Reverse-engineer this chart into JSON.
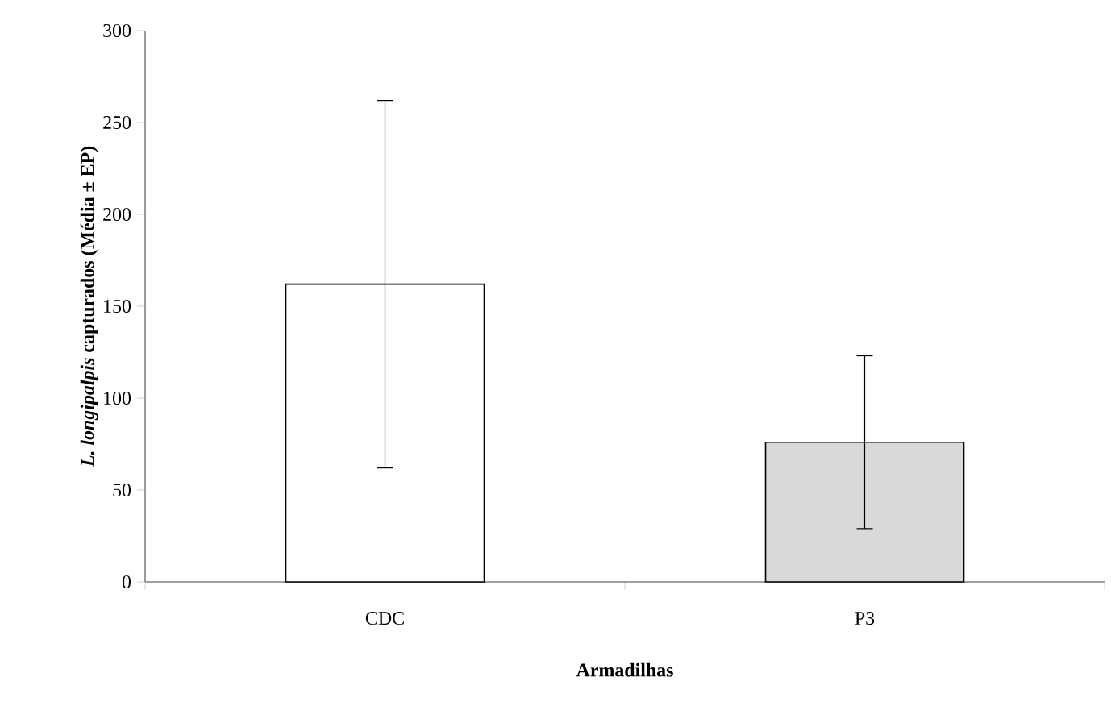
{
  "chart_data": {
    "type": "bar",
    "xlabel": "Armadilhas",
    "ylabel": "*L. longipalpis* capturados (Média ± EP)",
    "categories": [
      "CDC",
      "P3"
    ],
    "values": [
      162,
      76
    ],
    "errors": [
      100,
      47
    ],
    "colors": [
      "#ffffff",
      "#d9d9d9"
    ],
    "ylim": [
      0,
      300
    ],
    "yticks": [
      0,
      50,
      100,
      150,
      200,
      250,
      300
    ],
    "grid": false
  }
}
